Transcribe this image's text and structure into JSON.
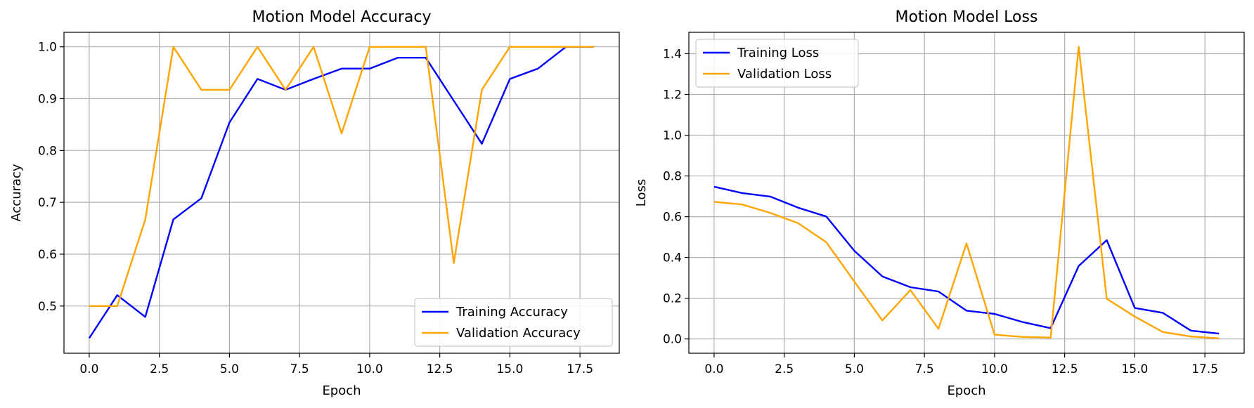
{
  "chart_data": [
    {
      "type": "line",
      "title": "Motion Model Accuracy",
      "xlabel": "Epoch",
      "ylabel": "Accuracy",
      "xlim": [
        -0.9,
        18.9
      ],
      "ylim": [
        0.409,
        1.028
      ],
      "xticks": [
        "0.0",
        "2.5",
        "5.0",
        "7.5",
        "10.0",
        "12.5",
        "15.0",
        "17.5"
      ],
      "yticks": [
        "0.5",
        "0.6",
        "0.7",
        "0.8",
        "0.9",
        "1.0"
      ],
      "grid": true,
      "legend_position": "lower right",
      "x": [
        0,
        1,
        2,
        3,
        4,
        5,
        6,
        7,
        8,
        9,
        10,
        11,
        12,
        13,
        14,
        15,
        16,
        17,
        18
      ],
      "series": [
        {
          "name": "Training Accuracy",
          "color": "#0000ff",
          "values": [
            0.438,
            0.521,
            0.479,
            0.667,
            0.708,
            0.854,
            0.938,
            0.917,
            0.938,
            0.958,
            0.958,
            0.979,
            0.979,
            0.896,
            0.813,
            0.938,
            0.958,
            1.0,
            1.0
          ]
        },
        {
          "name": "Validation Accuracy",
          "color": "#ffa500",
          "values": [
            0.5,
            0.5,
            0.667,
            1.0,
            0.917,
            0.917,
            1.0,
            0.917,
            1.0,
            0.833,
            1.0,
            1.0,
            1.0,
            0.583,
            0.917,
            1.0,
            1.0,
            1.0,
            1.0
          ]
        }
      ]
    },
    {
      "type": "line",
      "title": "Motion Model Loss",
      "xlabel": "Epoch",
      "ylabel": "Loss",
      "xlim": [
        -0.9,
        18.9
      ],
      "ylim": [
        -0.07,
        1.505
      ],
      "xticks": [
        "0.0",
        "2.5",
        "5.0",
        "7.5",
        "10.0",
        "12.5",
        "15.0",
        "17.5"
      ],
      "yticks": [
        "0.0",
        "0.2",
        "0.4",
        "0.6",
        "0.8",
        "1.0",
        "1.2",
        "1.4"
      ],
      "grid": true,
      "legend_position": "upper left",
      "x": [
        0,
        1,
        2,
        3,
        4,
        5,
        6,
        7,
        8,
        9,
        10,
        11,
        12,
        13,
        14,
        15,
        16,
        17,
        18
      ],
      "series": [
        {
          "name": "Training Loss",
          "color": "#0000ff",
          "values": [
            0.747,
            0.716,
            0.699,
            0.644,
            0.601,
            0.433,
            0.307,
            0.254,
            0.233,
            0.139,
            0.123,
            0.083,
            0.053,
            0.358,
            0.485,
            0.152,
            0.128,
            0.041,
            0.026
          ]
        },
        {
          "name": "Validation Loss",
          "color": "#ffa500",
          "values": [
            0.673,
            0.66,
            0.619,
            0.568,
            0.475,
            0.282,
            0.091,
            0.24,
            0.05,
            0.469,
            0.021,
            0.01,
            0.007,
            1.434,
            0.197,
            0.11,
            0.034,
            0.012,
            0.003
          ]
        }
      ]
    }
  ]
}
